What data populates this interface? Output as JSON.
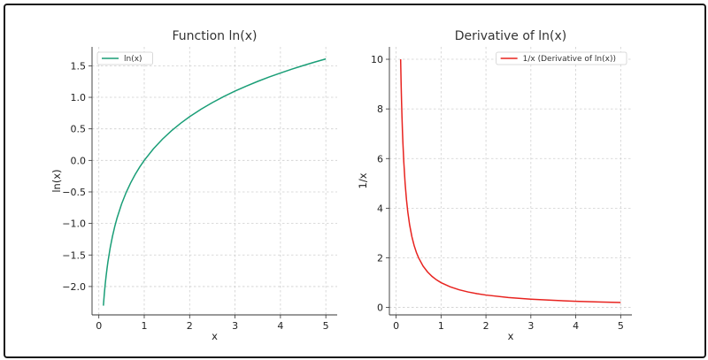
{
  "chart_data": [
    {
      "type": "line",
      "title": "Function ln(x)",
      "xlabel": "x",
      "ylabel": "ln(x)",
      "xlim": [
        -0.15,
        5.25
      ],
      "ylim": [
        -2.45,
        1.8
      ],
      "xticks": [
        0,
        1,
        2,
        3,
        4,
        5
      ],
      "yticks": [
        -2.0,
        -1.5,
        -1.0,
        -0.5,
        0.0,
        0.5,
        1.0,
        1.5
      ],
      "ytick_labels": [
        "−2.0",
        "−1.5",
        "−1.0",
        "−0.5",
        "0.0",
        "0.5",
        "1.0",
        "1.5"
      ],
      "xtick_labels": [
        "0",
        "1",
        "2",
        "3",
        "4",
        "5"
      ],
      "grid": true,
      "legend_position": "top-left",
      "series": [
        {
          "name": "ln(x)",
          "color": "#1a9e77",
          "x": [
            0.1,
            0.12,
            0.14,
            0.16,
            0.18,
            0.2,
            0.25,
            0.3,
            0.35,
            0.4,
            0.5,
            0.6,
            0.7,
            0.8,
            0.9,
            1.0,
            1.2,
            1.4,
            1.6,
            1.8,
            2.0,
            2.25,
            2.5,
            2.75,
            3.0,
            3.25,
            3.5,
            3.75,
            4.0,
            4.25,
            4.5,
            4.75,
            5.0
          ],
          "y": [
            -2.303,
            -2.12,
            -1.966,
            -1.833,
            -1.715,
            -1.609,
            -1.386,
            -1.204,
            -1.05,
            -0.916,
            -0.693,
            -0.511,
            -0.357,
            -0.223,
            -0.105,
            0.0,
            0.182,
            0.336,
            0.47,
            0.588,
            0.693,
            0.811,
            0.916,
            1.012,
            1.099,
            1.179,
            1.253,
            1.322,
            1.386,
            1.447,
            1.504,
            1.558,
            1.609
          ]
        }
      ]
    },
    {
      "type": "line",
      "title": "Derivative of ln(x)",
      "xlabel": "x",
      "ylabel": "1/x",
      "xlim": [
        -0.15,
        5.25
      ],
      "ylim": [
        -0.3,
        10.5
      ],
      "xticks": [
        0,
        1,
        2,
        3,
        4,
        5
      ],
      "yticks": [
        0,
        2,
        4,
        6,
        8,
        10
      ],
      "ytick_labels": [
        "0",
        "2",
        "4",
        "6",
        "8",
        "10"
      ],
      "xtick_labels": [
        "0",
        "1",
        "2",
        "3",
        "4",
        "5"
      ],
      "grid": true,
      "legend_position": "top-right",
      "series": [
        {
          "name": "1/x (Derivative of ln(x))",
          "color": "#e8231f",
          "x": [
            0.1,
            0.11,
            0.12,
            0.13,
            0.14,
            0.15,
            0.17,
            0.2,
            0.23,
            0.26,
            0.3,
            0.35,
            0.4,
            0.45,
            0.5,
            0.6,
            0.7,
            0.8,
            0.9,
            1.0,
            1.2,
            1.4,
            1.6,
            1.8,
            2.0,
            2.5,
            3.0,
            3.5,
            4.0,
            4.5,
            5.0
          ],
          "y": [
            10.0,
            9.091,
            8.333,
            7.692,
            7.143,
            6.667,
            5.882,
            5.0,
            4.348,
            3.846,
            3.333,
            2.857,
            2.5,
            2.222,
            2.0,
            1.667,
            1.429,
            1.25,
            1.111,
            1.0,
            0.833,
            0.714,
            0.625,
            0.556,
            0.5,
            0.4,
            0.333,
            0.286,
            0.25,
            0.222,
            0.2
          ]
        }
      ]
    }
  ]
}
